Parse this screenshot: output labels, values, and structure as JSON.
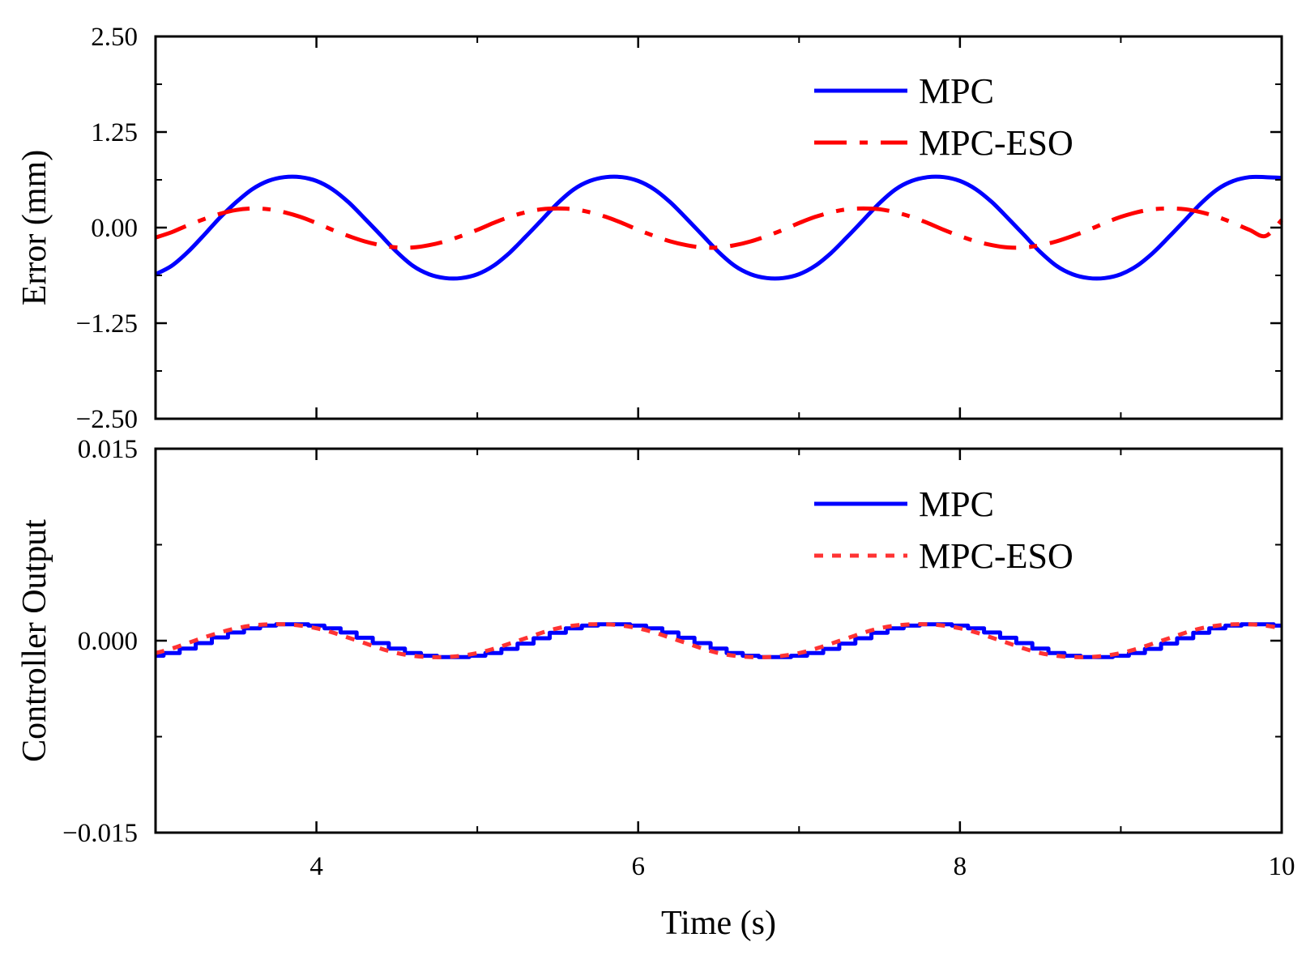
{
  "chart_data": [
    {
      "type": "line",
      "ylabel": "Error (mm)",
      "xlim": [
        3,
        10
      ],
      "ylim": [
        -2.5,
        2.5
      ],
      "yticks": [
        "2.50",
        "1.25",
        "0.00",
        "−1.25",
        "−2.50"
      ],
      "ytick_values": [
        2.5,
        1.25,
        0,
        -1.25,
        -2.5
      ],
      "legend_position": "top-right",
      "grid": false,
      "series": [
        {
          "name": "MPC",
          "color": "#0000ff",
          "style": "solid",
          "x": [
            3.0,
            3.1,
            3.2,
            3.3,
            3.4,
            3.5,
            3.6,
            3.7,
            3.8,
            3.9,
            4.0,
            4.1,
            4.2,
            4.3,
            4.4,
            4.5,
            4.6,
            4.7,
            4.8,
            4.9,
            5.0,
            5.1,
            5.2,
            5.3,
            5.4,
            5.5,
            5.6,
            5.7,
            5.8,
            5.9,
            6.0,
            6.1,
            6.2,
            6.3,
            6.4,
            6.5,
            6.6,
            6.7,
            6.8,
            6.9,
            7.0,
            7.1,
            7.2,
            7.3,
            7.4,
            7.5,
            7.6,
            7.7,
            7.8,
            7.9,
            8.0,
            8.1,
            8.2,
            8.3,
            8.4,
            8.5,
            8.6,
            8.7,
            8.8,
            8.9,
            9.0,
            9.1,
            9.2,
            9.3,
            9.4,
            9.5,
            9.6,
            9.7,
            9.8,
            9.9,
            10.0
          ],
          "y": [
            -0.61,
            -0.5,
            -0.32,
            -0.1,
            0.13,
            0.33,
            0.5,
            0.61,
            0.66,
            0.66,
            0.61,
            0.5,
            0.33,
            0.12,
            -0.1,
            -0.32,
            -0.5,
            -0.61,
            -0.66,
            -0.66,
            -0.61,
            -0.5,
            -0.33,
            -0.12,
            0.1,
            0.32,
            0.5,
            0.61,
            0.66,
            0.66,
            0.61,
            0.5,
            0.33,
            0.12,
            -0.1,
            -0.32,
            -0.5,
            -0.61,
            -0.66,
            -0.66,
            -0.61,
            -0.5,
            -0.33,
            -0.12,
            0.1,
            0.32,
            0.5,
            0.61,
            0.66,
            0.66,
            0.61,
            0.5,
            0.33,
            0.12,
            -0.1,
            -0.32,
            -0.5,
            -0.61,
            -0.66,
            -0.66,
            -0.61,
            -0.5,
            -0.33,
            -0.12,
            0.1,
            0.32,
            0.5,
            0.61,
            0.66,
            0.66,
            0.65
          ]
        },
        {
          "name": "MPC-ESO",
          "color": "#ff0000",
          "style": "dashdot",
          "x": [
            3.0,
            3.1,
            3.2,
            3.3,
            3.4,
            3.5,
            3.6,
            3.7,
            3.8,
            3.9,
            4.0,
            4.1,
            4.2,
            4.3,
            4.4,
            4.5,
            4.6,
            4.7,
            4.8,
            4.9,
            5.0,
            5.1,
            5.2,
            5.3,
            5.4,
            5.5,
            5.6,
            5.7,
            5.8,
            5.9,
            6.0,
            6.1,
            6.2,
            6.3,
            6.4,
            6.5,
            6.6,
            6.7,
            6.8,
            6.9,
            7.0,
            7.1,
            7.2,
            7.3,
            7.4,
            7.5,
            7.6,
            7.7,
            7.8,
            7.9,
            8.0,
            8.1,
            8.2,
            8.3,
            8.4,
            8.5,
            8.6,
            8.7,
            8.8,
            8.9,
            9.0,
            9.1,
            9.2,
            9.3,
            9.4,
            9.5,
            9.6,
            9.7,
            9.8,
            9.9,
            10.0
          ],
          "y": [
            -0.13,
            -0.06,
            0.03,
            0.11,
            0.18,
            0.23,
            0.25,
            0.24,
            0.2,
            0.14,
            0.06,
            -0.03,
            -0.11,
            -0.18,
            -0.23,
            -0.26,
            -0.26,
            -0.23,
            -0.18,
            -0.11,
            -0.03,
            0.06,
            0.14,
            0.2,
            0.24,
            0.25,
            0.24,
            0.2,
            0.14,
            0.06,
            -0.03,
            -0.11,
            -0.18,
            -0.23,
            -0.26,
            -0.26,
            -0.23,
            -0.18,
            -0.11,
            -0.03,
            0.06,
            0.14,
            0.2,
            0.24,
            0.25,
            0.24,
            0.2,
            0.14,
            0.06,
            -0.03,
            -0.11,
            -0.18,
            -0.23,
            -0.26,
            -0.26,
            -0.23,
            -0.18,
            -0.11,
            -0.03,
            0.06,
            0.14,
            0.2,
            0.24,
            0.25,
            0.24,
            0.2,
            0.14,
            0.06,
            -0.03,
            -0.11,
            0.1
          ]
        }
      ]
    },
    {
      "type": "line",
      "xlabel": "Time (s)",
      "ylabel": "Controller Output",
      "xlim": [
        3,
        10
      ],
      "ylim": [
        -0.015,
        0.015
      ],
      "xticks": [
        "4",
        "6",
        "8",
        "10"
      ],
      "xtick_values": [
        4,
        6,
        8,
        10
      ],
      "yticks": [
        "0.015",
        "0.000",
        "−0.015"
      ],
      "ytick_values": [
        0.015,
        0,
        -0.015
      ],
      "legend_position": "top-right",
      "grid": false,
      "series": [
        {
          "name": "MPC",
          "color": "#0000ff",
          "style": "solid-stepped",
          "x": [
            3.0,
            3.1,
            3.2,
            3.3,
            3.4,
            3.5,
            3.6,
            3.7,
            3.8,
            3.9,
            4.0,
            4.1,
            4.2,
            4.3,
            4.4,
            4.5,
            4.6,
            4.7,
            4.8,
            4.9,
            5.0,
            5.1,
            5.2,
            5.3,
            5.4,
            5.5,
            5.6,
            5.7,
            5.8,
            5.9,
            6.0,
            6.1,
            6.2,
            6.3,
            6.4,
            6.5,
            6.6,
            6.7,
            6.8,
            6.9,
            7.0,
            7.1,
            7.2,
            7.3,
            7.4,
            7.5,
            7.6,
            7.7,
            7.8,
            7.9,
            8.0,
            8.1,
            8.2,
            8.3,
            8.4,
            8.5,
            8.6,
            8.7,
            8.8,
            8.9,
            9.0,
            9.1,
            9.2,
            9.3,
            9.4,
            9.5,
            9.6,
            9.7,
            9.8,
            9.9,
            10.0
          ],
          "y": [
            -0.00118,
            -0.00097,
            -0.00062,
            -0.00019,
            0.00025,
            0.00064,
            0.00097,
            0.00118,
            0.00128,
            0.00128,
            0.00118,
            0.00097,
            0.00064,
            0.00023,
            -0.00019,
            -0.00062,
            -0.00097,
            -0.00118,
            -0.00128,
            -0.00128,
            -0.00118,
            -0.00097,
            -0.00064,
            -0.00023,
            0.00019,
            0.00062,
            0.00097,
            0.00118,
            0.00128,
            0.00128,
            0.00118,
            0.00097,
            0.00064,
            0.00023,
            -0.00019,
            -0.00062,
            -0.00097,
            -0.00118,
            -0.00128,
            -0.00128,
            -0.00118,
            -0.00097,
            -0.00064,
            -0.00023,
            0.00019,
            0.00062,
            0.00097,
            0.00118,
            0.00128,
            0.00128,
            0.00118,
            0.00097,
            0.00064,
            0.00023,
            -0.00019,
            -0.00062,
            -0.00097,
            -0.00118,
            -0.00128,
            -0.00128,
            -0.00118,
            -0.00097,
            -0.00064,
            -0.00023,
            0.00019,
            0.00062,
            0.00097,
            0.00118,
            0.00128,
            0.00128,
            0.00118
          ]
        },
        {
          "name": "MPC-ESO",
          "color": "#ff3333",
          "style": "dotted",
          "x": [
            3.0,
            3.1,
            3.2,
            3.3,
            3.4,
            3.5,
            3.6,
            3.7,
            3.8,
            3.9,
            4.0,
            4.1,
            4.2,
            4.3,
            4.4,
            4.5,
            4.6,
            4.7,
            4.8,
            4.9,
            5.0,
            5.1,
            5.2,
            5.3,
            5.4,
            5.5,
            5.6,
            5.7,
            5.8,
            5.9,
            6.0,
            6.1,
            6.2,
            6.3,
            6.4,
            6.5,
            6.6,
            6.7,
            6.8,
            6.9,
            7.0,
            7.1,
            7.2,
            7.3,
            7.4,
            7.5,
            7.6,
            7.7,
            7.8,
            7.9,
            8.0,
            8.1,
            8.2,
            8.3,
            8.4,
            8.5,
            8.6,
            8.7,
            8.8,
            8.9,
            9.0,
            9.1,
            9.2,
            9.3,
            9.4,
            9.5,
            9.6,
            9.7,
            9.8,
            9.9,
            10.0
          ],
          "y": [
            -0.00097,
            -0.00062,
            -0.00019,
            0.00025,
            0.00064,
            0.00097,
            0.00118,
            0.00128,
            0.00128,
            0.00118,
            0.00097,
            0.00064,
            0.00023,
            -0.00019,
            -0.00062,
            -0.00097,
            -0.00118,
            -0.00128,
            -0.00128,
            -0.00118,
            -0.00097,
            -0.00064,
            -0.00023,
            0.00019,
            0.00062,
            0.00097,
            0.00118,
            0.00128,
            0.00128,
            0.00118,
            0.00097,
            0.00064,
            0.00023,
            -0.00019,
            -0.00062,
            -0.00097,
            -0.00118,
            -0.00128,
            -0.00128,
            -0.00118,
            -0.00097,
            -0.00064,
            -0.00023,
            0.00019,
            0.00062,
            0.00097,
            0.00118,
            0.00128,
            0.00128,
            0.00118,
            0.00097,
            0.00064,
            0.00023,
            -0.00019,
            -0.00062,
            -0.00097,
            -0.00118,
            -0.00128,
            -0.00128,
            -0.00118,
            -0.00097,
            -0.00064,
            -0.00023,
            0.00019,
            0.00062,
            0.00097,
            0.00118,
            0.00128,
            0.00128,
            0.00118,
            0.00097
          ]
        }
      ]
    }
  ]
}
